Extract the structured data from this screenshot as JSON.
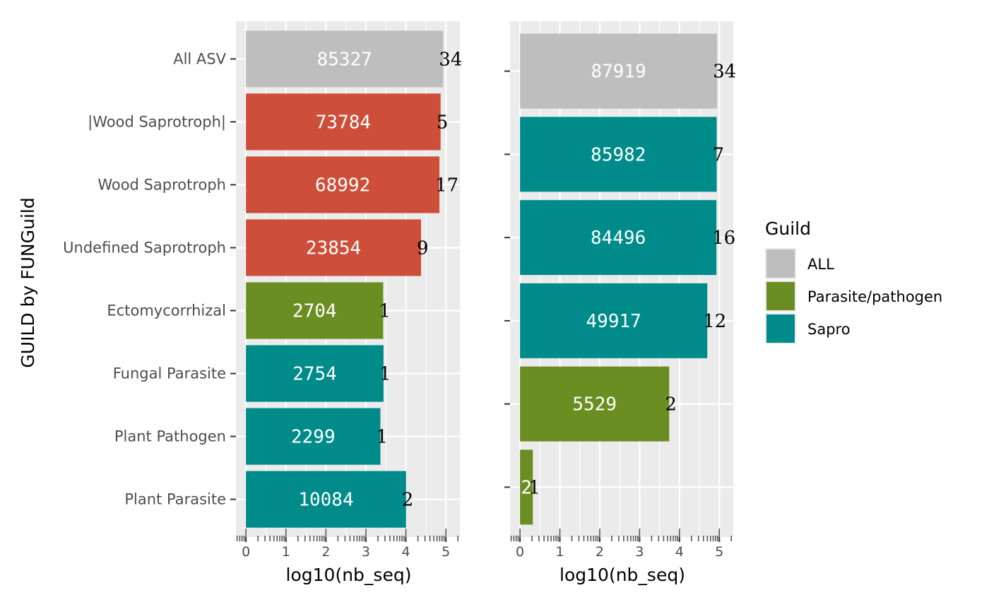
{
  "ylabel": "GUILD by FUNGuild",
  "legend": {
    "title": "Guild",
    "placement": "right",
    "entries": [
      {
        "name": "ALL",
        "color": "#bebebe"
      },
      {
        "name": "Parasite/pathogen",
        "color": "#6b8e23"
      },
      {
        "name": "Sapro",
        "color": "#008b8b"
      }
    ]
  },
  "colors": {
    "ALL": "#bebebe",
    "Saprotroph_red": "#cd4f39",
    "Parasite/pathogen": "#6b8e23",
    "Sapro": "#008b8b"
  },
  "chart_data": [
    {
      "type": "bar",
      "orientation": "horizontal",
      "xlabel": "log10(nb_seq)",
      "xlim": [
        -0.25,
        5.35
      ],
      "x_ticks": [
        "0",
        "1",
        "2",
        "3",
        "4",
        "5"
      ],
      "grid": true,
      "categories": [
        "All ASV",
        "|Wood Saprotroph|",
        "Wood Saprotroph",
        "Undefined Saprotroph",
        "Ectomycorrhizal",
        "Fungal Parasite",
        "Plant Pathogen",
        "Plant Parasite"
      ],
      "values": [
        4.931,
        4.868,
        4.839,
        4.378,
        3.432,
        3.44,
        3.362,
        4.004
      ],
      "bar_labels": [
        "85327",
        "73784",
        "68992",
        "23854",
        "2704",
        "2754",
        "2299",
        "10084"
      ],
      "count_labels": [
        "34",
        "5",
        "17",
        "9",
        "1",
        "1",
        "1",
        "2"
      ],
      "bar_colors": [
        "#bebebe",
        "#cd4f39",
        "#cd4f39",
        "#cd4f39",
        "#6b8e23",
        "#008b8b",
        "#008b8b",
        "#008b8b"
      ]
    },
    {
      "type": "bar",
      "orientation": "horizontal",
      "xlabel": "log10(nb_seq)",
      "xlim": [
        -0.25,
        5.35
      ],
      "x_ticks": [
        "0",
        "1",
        "2",
        "3",
        "4",
        "5"
      ],
      "grid": true,
      "categories": [
        "",
        "",
        "",
        "",
        "",
        ""
      ],
      "values": [
        4.944,
        4.934,
        4.927,
        4.698,
        3.743,
        0.322
      ],
      "bar_labels": [
        "87919",
        "85982",
        "84496",
        "49917",
        "5529",
        "2"
      ],
      "count_labels": [
        "34",
        "7",
        "16",
        "12",
        "2",
        "1"
      ],
      "bar_colors": [
        "#bebebe",
        "#008b8b",
        "#008b8b",
        "#008b8b",
        "#6b8e23",
        "#6b8e23"
      ]
    }
  ]
}
